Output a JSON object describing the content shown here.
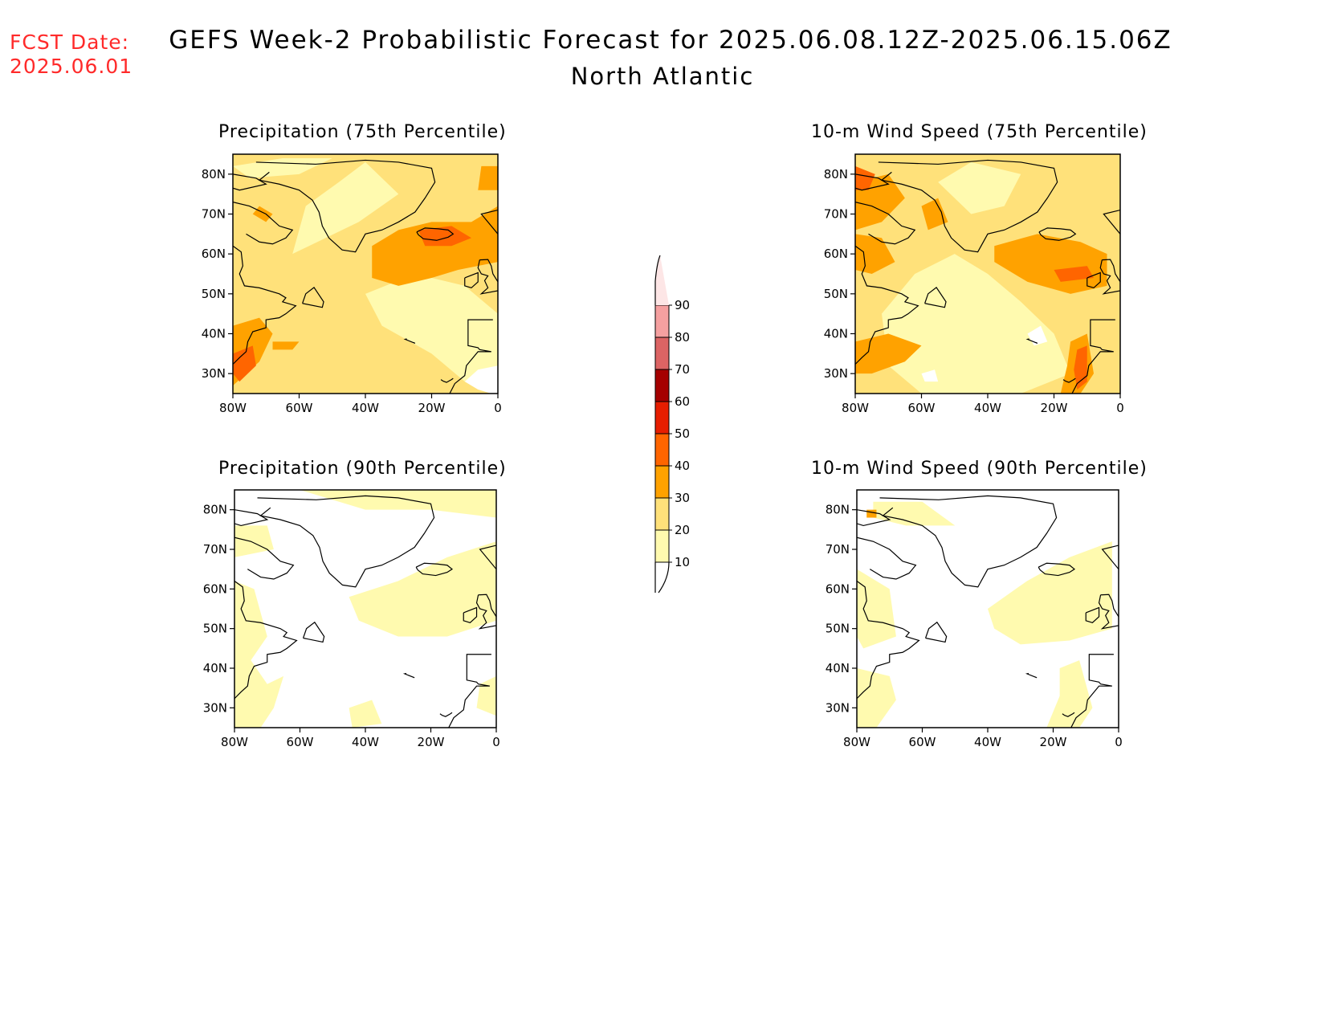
{
  "fcst_date": {
    "label": "FCST Date:",
    "value": "2025.06.01"
  },
  "title": "GEFS Week-2 Probabilistic Forecast for 2025.06.08.12Z-2025.06.15.06Z",
  "subtitle": "North Atlantic",
  "panels": [
    {
      "title": "Precipitation (75th Percentile)",
      "field": "precip",
      "percentile": 75
    },
    {
      "title": "10-m Wind Speed (75th Percentile)",
      "field": "wind",
      "percentile": 75
    },
    {
      "title": "Precipitation (90th Percentile)",
      "field": "precip",
      "percentile": 90
    },
    {
      "title": "10-m Wind Speed (90th Percentile)",
      "field": "wind",
      "percentile": 90
    }
  ],
  "map_extent": {
    "lon": [
      -80,
      0
    ],
    "lat": [
      25,
      85
    ]
  },
  "lat_ticks": [
    "80N",
    "70N",
    "60N",
    "50N",
    "40N",
    "30N"
  ],
  "lon_ticks": [
    "80W",
    "60W",
    "40W",
    "20W",
    "0"
  ],
  "colorbar": {
    "levels": [
      "10",
      "20",
      "30",
      "40",
      "50",
      "60",
      "70",
      "80",
      "90"
    ],
    "colors": [
      "#fffaaf",
      "#ffe17a",
      "#ffa200",
      "#ff6500",
      "#e61e00",
      "#a50000",
      "#dc6464",
      "#f5a0a0",
      "#fde6e6"
    ]
  }
}
